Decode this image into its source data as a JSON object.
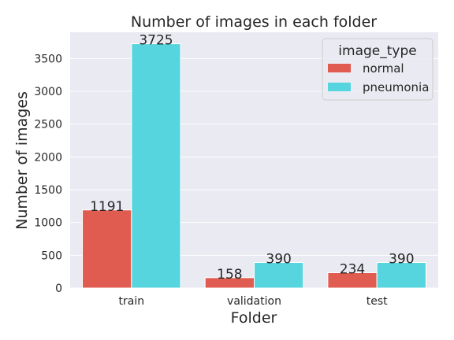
{
  "chart_data": {
    "type": "bar",
    "title": "Number of images in each folder",
    "xlabel": "Folder",
    "ylabel": "Number of images",
    "categories": [
      "train",
      "validation",
      "test"
    ],
    "series": [
      {
        "name": "normal",
        "color": "#e05b50",
        "values": [
          1191,
          158,
          234
        ]
      },
      {
        "name": "pneumonia",
        "color": "#56d5de",
        "values": [
          3725,
          390,
          390
        ]
      }
    ],
    "ylim": [
      0,
      3900
    ],
    "yticks": [
      0,
      500,
      1000,
      1500,
      2000,
      2500,
      3000,
      3500
    ],
    "legend_title": "image_type",
    "legend_position": "top-right",
    "grid": true,
    "background_color": "#eaeaf2",
    "grid_color": "#ffffff"
  }
}
